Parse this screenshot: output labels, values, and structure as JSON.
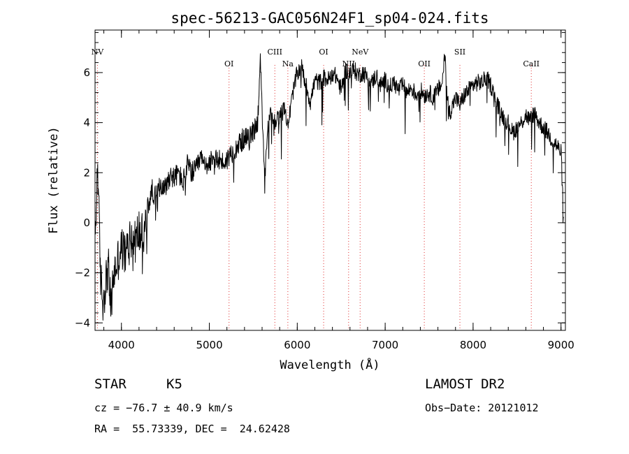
{
  "chart_data": {
    "type": "line",
    "title": "spec-56213-GAC056N24F1_sp04-024.fits",
    "xlabel": "Wavelength (Å)",
    "ylabel": "Flux (relative)",
    "xlim": [
      3700,
      9050
    ],
    "ylim": [
      -4.3,
      7.7
    ],
    "xticks": [
      4000,
      5000,
      6000,
      7000,
      8000,
      9000
    ],
    "yticks": [
      -4,
      -2,
      0,
      2,
      4,
      6
    ],
    "x_minor_step": 200,
    "y_minor_step": 0.4,
    "line_color": "#000000",
    "marker_color": "#e03030",
    "series": [
      {
        "name": "spectrum",
        "x": [
          3700,
          3730,
          3760,
          3790,
          3820,
          3850,
          3880,
          3910,
          3950,
          4000,
          4050,
          4100,
          4150,
          4200,
          4250,
          4300,
          4350,
          4400,
          4450,
          4500,
          4550,
          4600,
          4650,
          4700,
          4750,
          4800,
          4850,
          4900,
          4950,
          5000,
          5050,
          5100,
          5150,
          5200,
          5250,
          5300,
          5350,
          5400,
          5450,
          5500,
          5550,
          5580,
          5600,
          5630,
          5660,
          5700,
          5750,
          5800,
          5850,
          5900,
          5950,
          6000,
          6050,
          6100,
          6150,
          6200,
          6250,
          6300,
          6350,
          6400,
          6450,
          6500,
          6550,
          6600,
          6650,
          6700,
          6750,
          6800,
          6850,
          6900,
          6950,
          7000,
          7050,
          7100,
          7150,
          7200,
          7250,
          7300,
          7350,
          7400,
          7450,
          7500,
          7550,
          7600,
          7650,
          7680,
          7700,
          7730,
          7760,
          7800,
          7850,
          7900,
          7950,
          8000,
          8050,
          8100,
          8150,
          8200,
          8250,
          8300,
          8350,
          8400,
          8450,
          8500,
          8550,
          8600,
          8650,
          8700,
          8750,
          8800,
          8850,
          8900,
          8950,
          9000,
          9030
        ],
        "y": [
          -1.0,
          2.5,
          -2.0,
          -3.2,
          -2.4,
          -1.7,
          -3.5,
          -2.1,
          -1.6,
          -1.0,
          -1.3,
          -0.5,
          -0.8,
          -0.3,
          -0.6,
          0.6,
          1.3,
          1.0,
          1.6,
          1.4,
          1.9,
          1.8,
          2.0,
          1.6,
          2.3,
          2.0,
          2.1,
          2.6,
          2.2,
          2.5,
          2.3,
          2.6,
          2.4,
          2.5,
          2.8,
          3.0,
          3.2,
          3.4,
          3.3,
          3.7,
          4.0,
          6.8,
          4.3,
          1.6,
          3.6,
          4.4,
          4.0,
          4.3,
          4.5,
          4.0,
          5.2,
          6.0,
          6.2,
          5.5,
          4.8,
          5.7,
          5.6,
          5.8,
          5.7,
          6.0,
          5.8,
          5.3,
          6.1,
          6.0,
          6.1,
          5.9,
          6.0,
          5.8,
          5.6,
          5.9,
          5.5,
          5.7,
          5.4,
          5.6,
          5.3,
          5.5,
          5.2,
          5.4,
          5.1,
          5.3,
          5.1,
          5.2,
          5.0,
          5.3,
          5.6,
          6.9,
          5.2,
          4.4,
          4.6,
          5.0,
          4.7,
          5.1,
          5.3,
          5.5,
          5.6,
          5.6,
          5.8,
          5.5,
          5.0,
          4.5,
          4.2,
          4.0,
          3.6,
          3.8,
          4.0,
          4.3,
          4.1,
          4.4,
          4.0,
          3.8,
          3.6,
          3.3,
          3.1,
          2.8,
          0.2
        ]
      }
    ],
    "lines": [
      {
        "label": "NV",
        "x": 3727
      },
      {
        "label": "OI",
        "x": 5224
      },
      {
        "label": "CIII",
        "x": 5745
      },
      {
        "label": "Na",
        "x": 5893
      },
      {
        "label": "OI",
        "x": 6300
      },
      {
        "label": "NII",
        "x": 6584
      },
      {
        "label": "NeV",
        "x": 6715
      },
      {
        "label": "OII",
        "x": 7445
      },
      {
        "label": "SII",
        "x": 7850
      },
      {
        "label": "CaII",
        "x": 8662
      }
    ]
  },
  "info": {
    "object_class": "STAR",
    "subclass": "K5",
    "survey": "LAMOST DR2",
    "cz": "cz = −76.7 ± 40.9 km/s",
    "obs_date": "Obs−Date: 20121012",
    "radec": "RA =  55.73339, DEC =  24.62428"
  }
}
